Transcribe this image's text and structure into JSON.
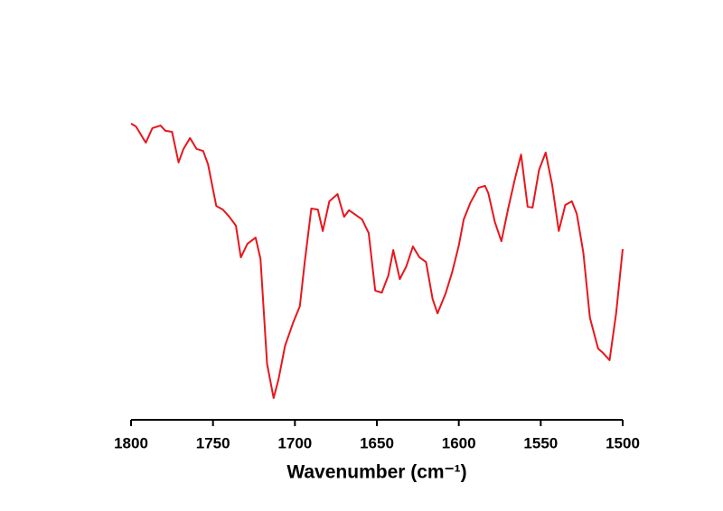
{
  "chart_data": {
    "type": "line",
    "xlabel": "Wavenumber (cm⁻¹)",
    "x": [
      1800,
      1797,
      1791,
      1787,
      1782,
      1779,
      1775,
      1771,
      1768,
      1764,
      1760,
      1756,
      1753,
      1748,
      1744,
      1740,
      1736,
      1733,
      1729,
      1724,
      1721,
      1717,
      1713,
      1710,
      1706,
      1701,
      1697,
      1694,
      1690,
      1686,
      1683,
      1679,
      1674,
      1670,
      1667,
      1663,
      1659,
      1655,
      1651,
      1647,
      1643,
      1640,
      1636,
      1632,
      1628,
      1624,
      1620,
      1616,
      1613,
      1608,
      1604,
      1600,
      1597,
      1593,
      1588,
      1584,
      1582,
      1578,
      1574,
      1570,
      1566,
      1562,
      1558,
      1555,
      1551,
      1547,
      1543,
      1539,
      1535,
      1531,
      1528,
      1524,
      1520,
      1515,
      1512,
      1508,
      1504,
      1500
    ],
    "series": [
      {
        "color": "#e8161c",
        "values": [
          89.9,
          89.0,
          84.1,
          88.5,
          89.3,
          87.7,
          87.4,
          78.1,
          82.2,
          85.5,
          82.2,
          81.6,
          77.5,
          64.9,
          63.8,
          61.6,
          58.9,
          49.3,
          53.4,
          55.3,
          48.8,
          17.0,
          6.6,
          12.3,
          22.5,
          29.6,
          34.5,
          47.9,
          64.1,
          63.8,
          57.3,
          66.3,
          68.5,
          61.6,
          63.6,
          62.2,
          60.8,
          56.7,
          39.2,
          38.6,
          43.8,
          51.5,
          42.7,
          46.6,
          52.6,
          49.3,
          47.9,
          36.7,
          32.3,
          38.4,
          44.9,
          52.9,
          60.8,
          65.8,
          70.4,
          71.0,
          68.8,
          60.0,
          54.2,
          63.8,
          72.6,
          80.5,
          64.7,
          64.4,
          75.9,
          81.1,
          71.2,
          57.3,
          65.2,
          66.3,
          62.5,
          50.7,
          31.0,
          21.6,
          20.3,
          18.1,
          32.3,
          51.8
        ]
      }
    ],
    "xlim": [
      1800,
      1500
    ],
    "xticks": [
      1800,
      1750,
      1700,
      1650,
      1600,
      1550,
      1500
    ],
    "ylim": [
      0,
      100
    ]
  }
}
